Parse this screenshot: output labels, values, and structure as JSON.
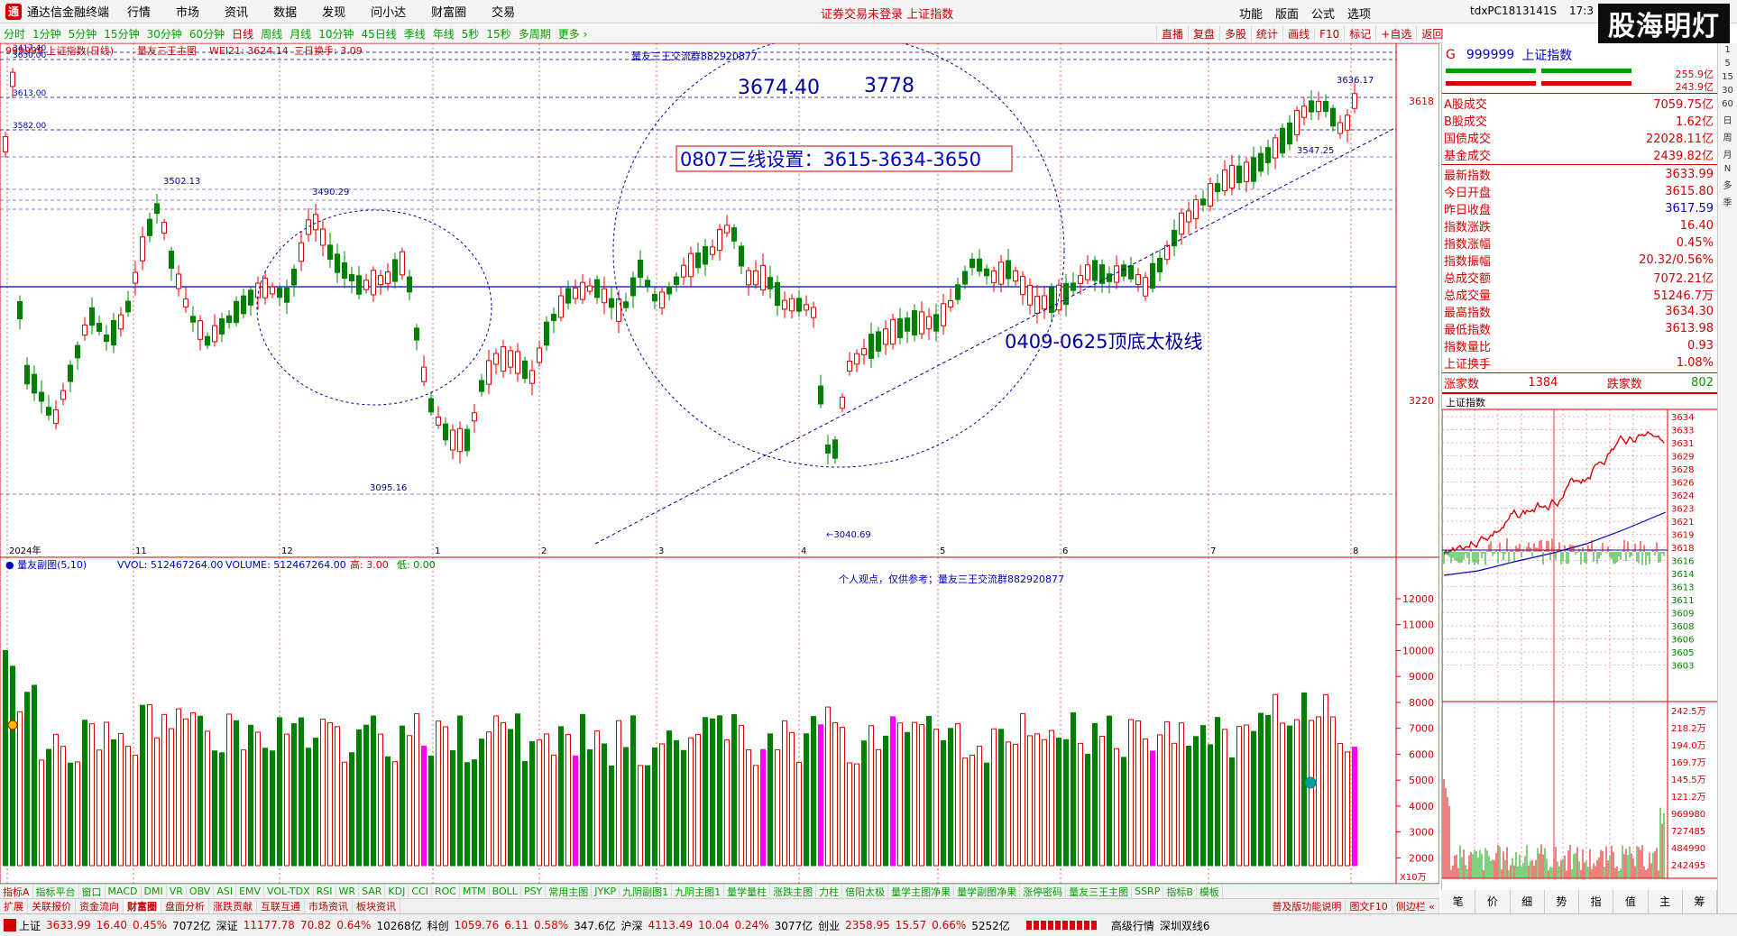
{
  "menubar": {
    "logo": "通",
    "app_title": "通达信金融终端",
    "items": [
      "行情",
      "市场",
      "资讯",
      "数据",
      "发现",
      "问小达",
      "财富圈",
      "交易"
    ],
    "notice": "证券交易未登录  上证指数",
    "right_items": [
      "功能",
      "版面",
      "公式",
      "选项"
    ],
    "tdx_id": "tdxPC1813141S",
    "time": "17:3"
  },
  "brand": "股海明灯",
  "timeframes": [
    "分时",
    "1分钟",
    "5分钟",
    "15分钟",
    "30分钟",
    "60分钟",
    "日线",
    "周线",
    "月线",
    "10分钟",
    "45日线",
    "季线",
    "年线",
    "5秒",
    "15秒",
    "多周期",
    "更多 ›"
  ],
  "tools": [
    "直播",
    "复盘",
    "多股",
    "统计",
    "画线",
    "F10",
    "标记",
    "+自选",
    "返回"
  ],
  "main": {
    "header": {
      "code": "999999 上证指数(日线)",
      "formula": "量友三王主图",
      "wei": "WEI21: 3624.14",
      "turnover": "三日换手: 3.09"
    },
    "labels": {
      "contact": "量友三王交流群882920877",
      "p1": "3674.40",
      "p2": "3778",
      "box": "0807三线设置：3615-3634-3650",
      "trend": "0409-0625顶底太极线",
      "high1": "3502.13",
      "high2": "3490.29",
      "low1": "3095.16",
      "low2": "3040.69",
      "recent_high": "3636.17",
      "recent_low": "3547.25",
      "lv1": "3650.00",
      "lv2": "3613.00",
      "lv3": "3582.00",
      "lv0": "3417.40"
    },
    "axis": [
      "3618",
      "3220"
    ],
    "xticks": [
      [
        "2024年",
        8
      ],
      [
        "11",
        148
      ],
      [
        "12",
        310
      ],
      [
        "1",
        480
      ],
      [
        "2",
        598
      ],
      [
        "3",
        728
      ],
      [
        "4",
        886
      ],
      [
        "5",
        1040
      ],
      [
        "6",
        1176
      ],
      [
        "7",
        1340
      ],
      [
        "8",
        1498
      ]
    ]
  },
  "sub": {
    "header": {
      "formula": "量友副图(5,10)",
      "vvol": "VVOL: 512467264.00",
      "volume": "VOLUME: 512467264.00",
      "high": "高: 3.00",
      "low": "低: 0.00"
    },
    "note": "个人观点，仅供参考；量友三王交流群882920877",
    "axis": [
      "12000",
      "11000",
      "10000",
      "9000",
      "8000",
      "7000",
      "6000",
      "5000",
      "4000",
      "3000",
      "2000"
    ],
    "unit": "X10万"
  },
  "indicator_tabs": [
    "指标A",
    "指标平台",
    "窗口",
    "MACD",
    "DMI",
    "VR",
    "OBV",
    "ASI",
    "EMV",
    "VOL-TDX",
    "RSI",
    "WR",
    "SAR",
    "KDJ",
    "CCI",
    "ROC",
    "MTM",
    "BOLL",
    "PSY",
    "常用主图",
    "JYKP",
    "九阴副图1",
    "九阴主图1",
    "量学量柱",
    "涨跌主图",
    "力柱",
    "倍阳太极",
    "量学主图净果",
    "量学副图净果",
    "涨停密码",
    "量友三王主图",
    "SSRP",
    "指标B",
    "模板"
  ],
  "sub_tabs": [
    "扩展",
    "关联报价",
    "资金流向",
    "财富圈",
    "盘面分析",
    "涨跌贡献",
    "互联互通",
    "市场资讯",
    "板块资讯"
  ],
  "sub_tabs_right": [
    "普及版功能说明",
    "图文F10",
    "侧边栏 «"
  ],
  "status": {
    "sh": "上证",
    "sh_val": "3633.99",
    "sh_chg": "16.40",
    "sh_pct": "0.45%",
    "sh_amt": "7072亿",
    "sz": "深证",
    "sz_val": "11177.78",
    "sz_chg": "70.82",
    "sz_pct": "0.64%",
    "sz_amt": "10268亿",
    "kc": "科创",
    "kc_val": "1059.76",
    "kc_chg": "6.11",
    "kc_pct": "0.58%",
    "kc_amt": "347.6亿",
    "hs": "沪深",
    "hs_val": "4113.49",
    "hs_chg": "10.04",
    "hs_pct": "0.24%",
    "hs_amt": "3077亿",
    "cy": "创业",
    "cy_val": "2358.95",
    "cy_chg": "15.57",
    "cy_pct": "0.66%",
    "cy_amt": "5252亿",
    "advanced": "高级行情",
    "line": "深圳双线6"
  },
  "quote": {
    "marker": "G",
    "code": "999999",
    "name": "上证指数",
    "top": "255.9亿",
    "top2": "243.9亿",
    "rows": [
      [
        "A股成交",
        "7059.75亿"
      ],
      [
        "B股成交",
        "1.62亿"
      ],
      [
        "国债成交",
        "22028.11亿"
      ],
      [
        "基金成交",
        "2439.82亿"
      ]
    ],
    "rows2": [
      [
        "最新指数",
        "3633.99",
        "red"
      ],
      [
        "今日开盘",
        "3615.80",
        "red"
      ],
      [
        "昨日收盘",
        "3617.59",
        "blue"
      ],
      [
        "指数涨跌",
        "16.40",
        "red"
      ],
      [
        "指数涨幅",
        "0.45%",
        "red"
      ],
      [
        "指数振幅",
        "20.32/0.56%",
        "red"
      ],
      [
        "总成交额",
        "7072.21亿",
        "red"
      ],
      [
        "总成交量",
        "51246.7万",
        "red"
      ],
      [
        "最高指数",
        "3634.30",
        "red"
      ],
      [
        "最低指数",
        "3613.98",
        "red"
      ],
      [
        "指数量比",
        "0.93",
        "red"
      ],
      [
        "上证换手",
        "1.08%",
        "red"
      ]
    ],
    "updown": {
      "up_label": "涨家数",
      "up": "1384",
      "down_label": "跌家数",
      "down": "802"
    }
  },
  "intraday": {
    "title": "上证指数",
    "price_axis": [
      "3634",
      "3633",
      "3631",
      "3629",
      "3628",
      "3626",
      "3624",
      "3623",
      "3621",
      "3619",
      "3618",
      "3616",
      "3614",
      "3613",
      "3611",
      "3609",
      "3608",
      "3606",
      "3605",
      "3603"
    ],
    "vol_axis": [
      "242.5万",
      "218.2万",
      "194.0万",
      "169.7万",
      "145.5万",
      "121.2万",
      "969980",
      "727485",
      "484990",
      "242495"
    ]
  },
  "right_strip": [
    "1",
    "5",
    "15",
    "30",
    "60",
    "日",
    "周",
    "月",
    "N",
    "多",
    "季"
  ],
  "minibtns": [
    "笔",
    "价",
    "细",
    "势",
    "指",
    "值",
    "主",
    "筹"
  ]
}
